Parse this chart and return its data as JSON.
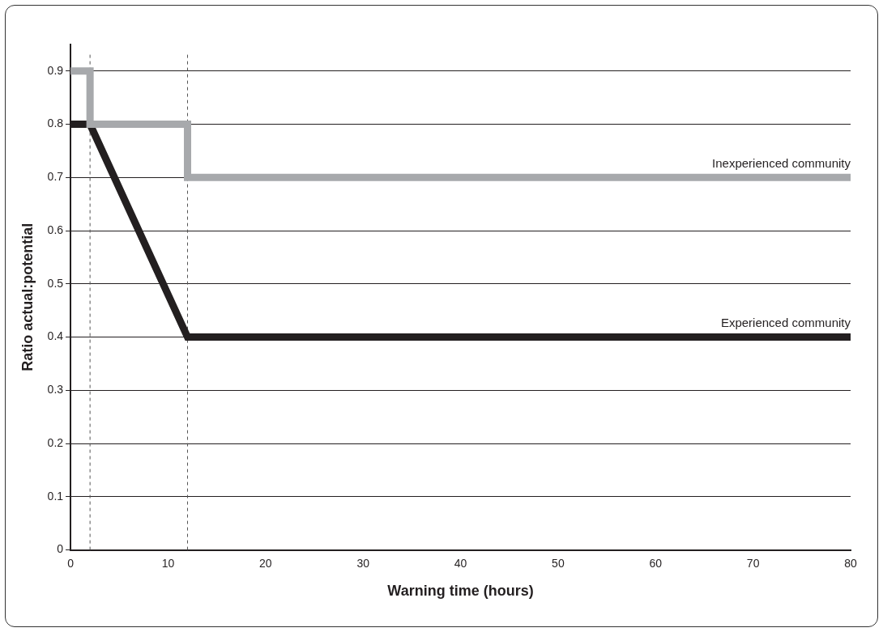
{
  "chart_data": {
    "type": "line",
    "xlabel": "Warning time (hours)",
    "ylabel": "Ratio actual:potential",
    "xlim": [
      0,
      80
    ],
    "xticks": [
      0,
      10,
      20,
      30,
      40,
      50,
      60,
      70,
      80
    ],
    "ylim": [
      0,
      0.95
    ],
    "yticks": [
      0,
      0.1,
      0.2,
      0.3,
      0.4,
      0.5,
      0.6,
      0.7,
      0.8,
      0.9
    ],
    "grid": "y",
    "legend": false,
    "marker": "none",
    "line_style": "solid",
    "series": [
      {
        "name": "Inexperienced community",
        "color": "#a7a9ac",
        "x": [
          0,
          2,
          2,
          12,
          12,
          80
        ],
        "values": [
          0.9,
          0.9,
          0.8,
          0.8,
          0.7,
          0.7
        ]
      },
      {
        "name": "Experienced community",
        "color": "#231f20",
        "x": [
          0,
          2,
          12,
          80
        ],
        "values": [
          0.8,
          0.8,
          0.4,
          0.4
        ]
      }
    ],
    "ref_lines": [
      {
        "axis": "x",
        "value": 2,
        "color": "#555555",
        "line_style": "dashed"
      },
      {
        "axis": "x",
        "value": 12,
        "color": "#555555",
        "line_style": "dashed"
      }
    ]
  }
}
